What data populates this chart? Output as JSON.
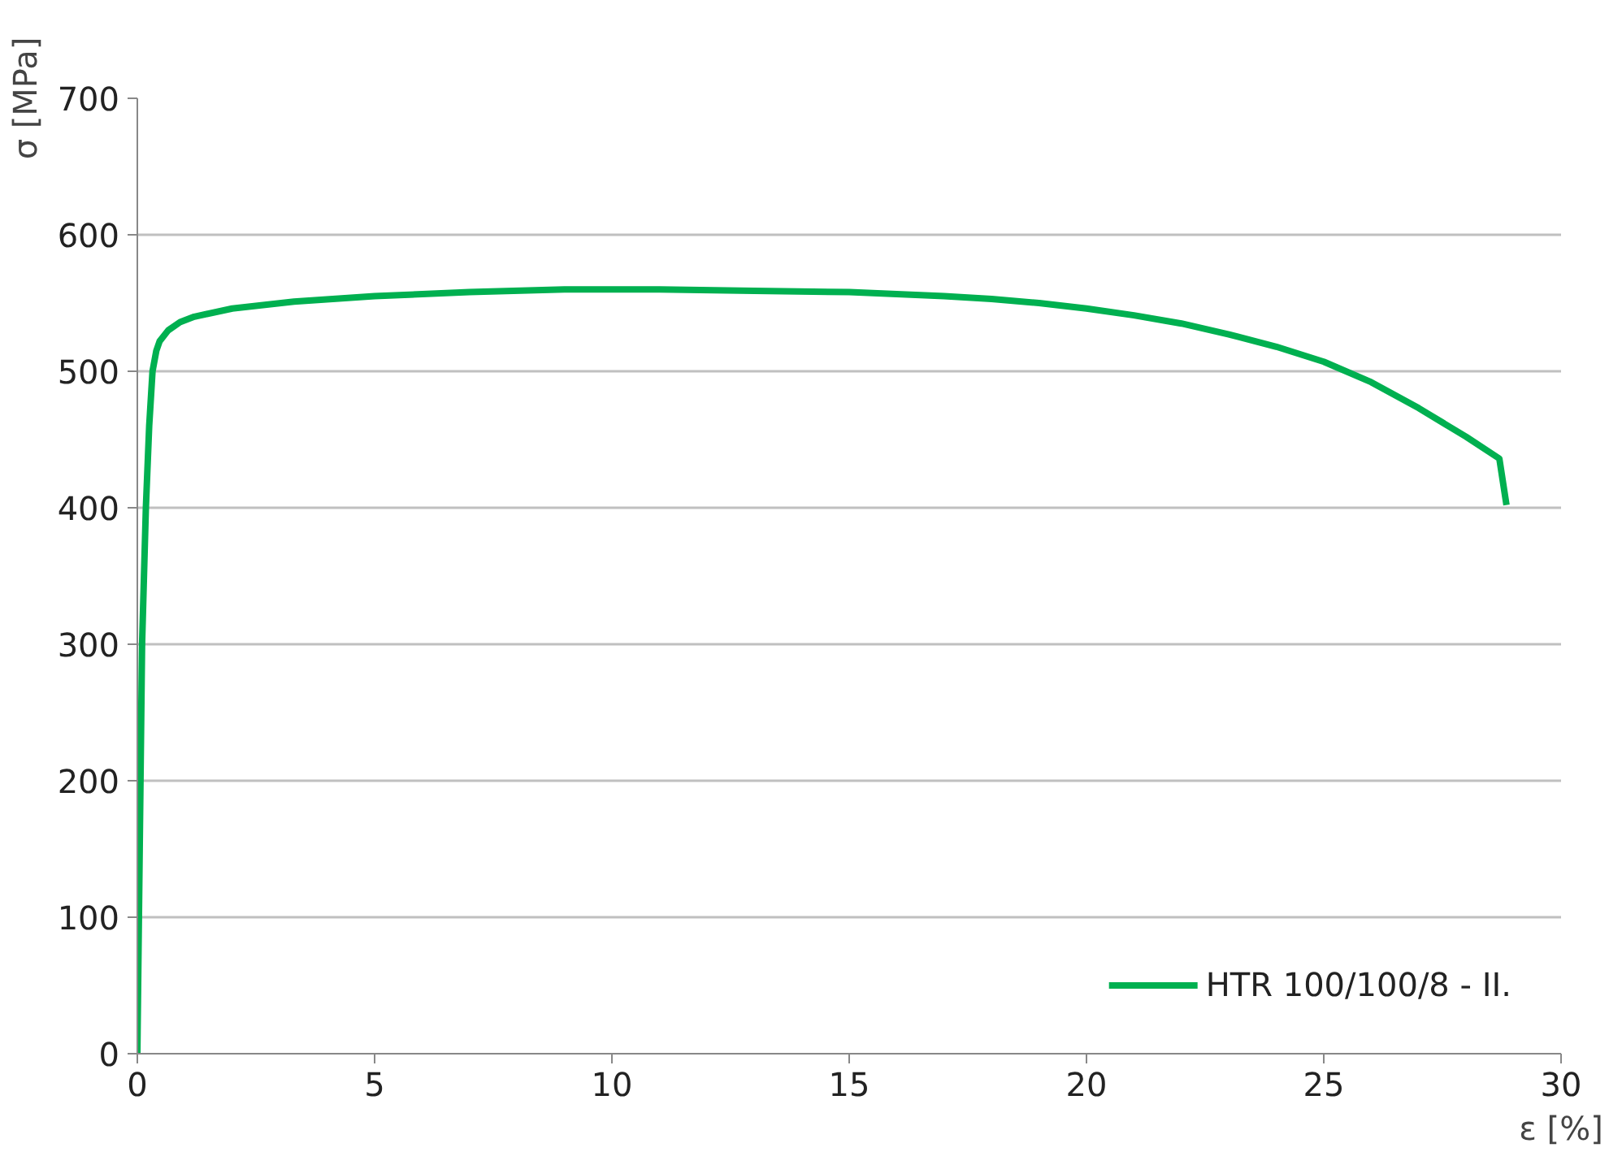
{
  "chart_data": {
    "type": "line",
    "xlabel": "ε [%]",
    "ylabel": "σ [MPa]",
    "xlim": [
      0,
      30
    ],
    "ylim": [
      0,
      700
    ],
    "xticks": [
      0,
      5,
      10,
      15,
      20,
      25,
      30
    ],
    "yticks": [
      0,
      100,
      200,
      300,
      400,
      500,
      600,
      700
    ],
    "grid": "y",
    "legend": "bottom right",
    "marker": "none",
    "line_style": "solid",
    "series": [
      {
        "name": "HTR 100/100/8 - II.",
        "color": "#00b050",
        "x": [
          0,
          0.05,
          0.1,
          0.18,
          0.25,
          0.32,
          0.4,
          0.47,
          0.65,
          0.9,
          1.2,
          2,
          3.3,
          5,
          7,
          9,
          11,
          13,
          15,
          17,
          18,
          19,
          20,
          21,
          22,
          23,
          24,
          25,
          26,
          27,
          28,
          28.7,
          28.85
        ],
        "values": [
          0,
          150,
          300,
          400,
          460,
          500,
          515,
          522,
          530,
          536,
          540,
          546,
          551,
          555,
          558,
          560,
          560,
          559,
          558,
          555,
          553,
          550,
          546,
          541,
          535,
          527,
          518,
          507,
          492,
          473,
          452,
          436,
          402
        ]
      }
    ]
  }
}
